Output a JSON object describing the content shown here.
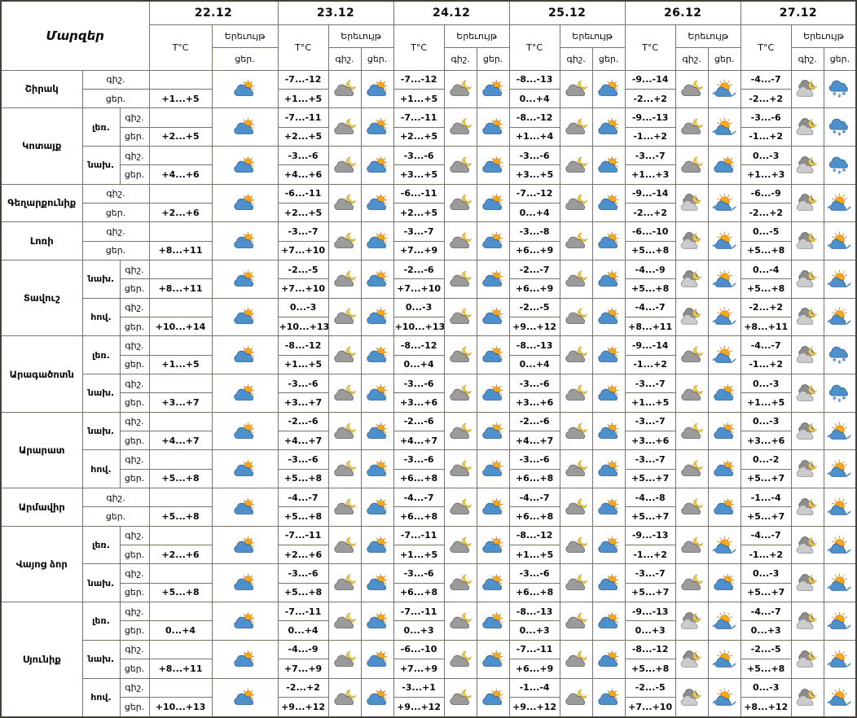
{
  "header": {
    "regions_label": "Մարզեր",
    "dates": [
      "22.12",
      "23.12",
      "24.12",
      "25.12",
      "26.12",
      "27.12"
    ],
    "temp_label": "T°C",
    "phenomenon_label": "Երեւույթ",
    "night_label": "գիշ.",
    "day_label": "ցեր."
  },
  "day_fields": [
    "night_temp",
    "day_temp",
    "night_icon",
    "day_icon"
  ],
  "icons": {
    "sun-cloud": "sun behind blue cloud — partly cloudy day",
    "moon-cloud": "moon behind gray cloud — cloudy night",
    "moon-clouds": "moon with two gray clouds — partly cloudy night",
    "sun-fog": "sun over blue fog bank — hazy sunshine",
    "snow-cloud": "blue cloud with snowflakes — snow"
  },
  "colors": {
    "grid_border": "#7b7565",
    "outer_border": "#44413a",
    "text": "#0a0a0a",
    "sun": "#f5a81c",
    "moon": "#efc84f",
    "cloud_blue": "#4e90cc",
    "cloud_gray": "#9b9b9b",
    "background": "#ffffff"
  },
  "regions": [
    {
      "name": "Շիրակ",
      "zones": [
        {
          "zone": null,
          "days": [
            [
              "",
              "+1...+5",
              null,
              "sun-cloud"
            ],
            [
              "-7...-12",
              "+1...+5",
              "moon-cloud",
              "sun-cloud"
            ],
            [
              "-7...-12",
              "+1...+5",
              "moon-cloud",
              "sun-cloud"
            ],
            [
              "-8...-13",
              "0...+4",
              "moon-cloud",
              "sun-cloud"
            ],
            [
              "-9...-14",
              "-2...+2",
              "moon-cloud",
              "sun-fog"
            ],
            [
              "-4...-7",
              "-2...+2",
              "moon-clouds",
              "snow-cloud"
            ]
          ]
        }
      ]
    },
    {
      "name": "Կոտայք",
      "zones": [
        {
          "zone": "լեռ.",
          "days": [
            [
              "",
              "+2...+5",
              null,
              "sun-cloud"
            ],
            [
              "-7...-11",
              "+2...+5",
              "moon-cloud",
              "sun-cloud"
            ],
            [
              "-7...-11",
              "+2...+5",
              "moon-cloud",
              "sun-cloud"
            ],
            [
              "-8...-12",
              "+1...+4",
              "moon-cloud",
              "sun-cloud"
            ],
            [
              "-9...-13",
              "-1...+2",
              "moon-cloud",
              "sun-fog"
            ],
            [
              "-3...-6",
              "-1...+2",
              "moon-clouds",
              "snow-cloud"
            ]
          ]
        },
        {
          "zone": "նախ.",
          "days": [
            [
              "",
              "+4...+6",
              null,
              "sun-cloud"
            ],
            [
              "-3...-6",
              "+4...+6",
              "moon-cloud",
              "sun-cloud"
            ],
            [
              "-3...-6",
              "+3...+5",
              "moon-cloud",
              "sun-cloud"
            ],
            [
              "-3...-6",
              "+3...+5",
              "moon-cloud",
              "sun-cloud"
            ],
            [
              "-3...-7",
              "+1...+3",
              "moon-cloud",
              "sun-cloud"
            ],
            [
              "0...-3",
              "+1...+3",
              "moon-clouds",
              "snow-cloud"
            ]
          ]
        }
      ]
    },
    {
      "name": "Գեղարքունիք",
      "zones": [
        {
          "zone": null,
          "days": [
            [
              "",
              "+2...+6",
              null,
              "sun-cloud"
            ],
            [
              "-6...-11",
              "+2...+5",
              "moon-cloud",
              "sun-cloud"
            ],
            [
              "-6...-11",
              "+2...+5",
              "moon-cloud",
              "sun-cloud"
            ],
            [
              "-7...-12",
              "0...+4",
              "moon-cloud",
              "sun-cloud"
            ],
            [
              "-9...-14",
              "-2...+2",
              "moon-clouds",
              "sun-fog"
            ],
            [
              "-6...-9",
              "-2...+2",
              "moon-clouds",
              "sun-fog"
            ]
          ]
        }
      ]
    },
    {
      "name": "Լոռի",
      "zones": [
        {
          "zone": null,
          "days": [
            [
              "",
              "+8...+11",
              null,
              "sun-cloud"
            ],
            [
              "-3...-7",
              "+7...+10",
              "moon-cloud",
              "sun-cloud"
            ],
            [
              "-3...-7",
              "+7...+9",
              "moon-cloud",
              "sun-cloud"
            ],
            [
              "-3...-8",
              "+6...+9",
              "moon-cloud",
              "sun-cloud"
            ],
            [
              "-6...-10",
              "+5...+8",
              "moon-clouds",
              "sun-fog"
            ],
            [
              "0...-5",
              "+5...+8",
              "moon-clouds",
              "sun-fog"
            ]
          ]
        }
      ]
    },
    {
      "name": "Տավուշ",
      "zones": [
        {
          "zone": "նախ.",
          "days": [
            [
              "",
              "+8...+11",
              null,
              "sun-cloud"
            ],
            [
              "-2...-5",
              "+7...+10",
              "moon-cloud",
              "sun-cloud"
            ],
            [
              "-2...-6",
              "+7...+10",
              "moon-cloud",
              "sun-cloud"
            ],
            [
              "-2...-7",
              "+6...+9",
              "moon-cloud",
              "sun-cloud"
            ],
            [
              "-4...-9",
              "+5...+8",
              "moon-clouds",
              "sun-fog"
            ],
            [
              "0...-4",
              "+5...+8",
              "moon-clouds",
              "sun-fog"
            ]
          ]
        },
        {
          "zone": "հով.",
          "days": [
            [
              "",
              "+10...+14",
              null,
              "sun-cloud"
            ],
            [
              "0...-3",
              "+10...+13",
              "moon-cloud",
              "sun-cloud"
            ],
            [
              "0...-3",
              "+10...+13",
              "moon-cloud",
              "sun-cloud"
            ],
            [
              "-2...-5",
              "+9...+12",
              "moon-cloud",
              "sun-cloud"
            ],
            [
              "-4...-7",
              "+8...+11",
              "moon-clouds",
              "sun-fog"
            ],
            [
              "-2...+2",
              "+8...+11",
              "moon-clouds",
              "sun-fog"
            ]
          ]
        }
      ]
    },
    {
      "name": "Արագածոտն",
      "zones": [
        {
          "zone": "լեռ.",
          "days": [
            [
              "",
              "+1...+5",
              null,
              "sun-cloud"
            ],
            [
              "-8...-12",
              "+1...+5",
              "moon-cloud",
              "sun-cloud"
            ],
            [
              "-8...-12",
              "0...+4",
              "moon-cloud",
              "sun-cloud"
            ],
            [
              "-8...-13",
              "0...+4",
              "moon-cloud",
              "sun-cloud"
            ],
            [
              "-9...-14",
              "-1...+2",
              "moon-cloud",
              "sun-fog"
            ],
            [
              "-4...-7",
              "-1...+2",
              "moon-clouds",
              "snow-cloud"
            ]
          ]
        },
        {
          "zone": "նախ.",
          "days": [
            [
              "",
              "+3...+7",
              null,
              "sun-cloud"
            ],
            [
              "-3...-6",
              "+3...+7",
              "moon-cloud",
              "sun-cloud"
            ],
            [
              "-3...-6",
              "+3...+6",
              "moon-cloud",
              "sun-cloud"
            ],
            [
              "-3...-6",
              "+3...+6",
              "moon-cloud",
              "sun-cloud"
            ],
            [
              "-3...-7",
              "+1...+5",
              "moon-cloud",
              "sun-cloud"
            ],
            [
              "0...-3",
              "+1...+5",
              "moon-clouds",
              "snow-cloud"
            ]
          ]
        }
      ]
    },
    {
      "name": "Արարատ",
      "zones": [
        {
          "zone": "նախ.",
          "days": [
            [
              "",
              "+4...+7",
              null,
              "sun-cloud"
            ],
            [
              "-2...-6",
              "+4...+7",
              "moon-cloud",
              "sun-cloud"
            ],
            [
              "-2...-6",
              "+4...+7",
              "moon-cloud",
              "sun-cloud"
            ],
            [
              "-2...-6",
              "+4...+7",
              "moon-cloud",
              "sun-cloud"
            ],
            [
              "-3...-7",
              "+3...+6",
              "moon-cloud",
              "sun-cloud"
            ],
            [
              "0...-3",
              "+3...+6",
              "moon-clouds",
              "sun-fog"
            ]
          ]
        },
        {
          "zone": "հով.",
          "days": [
            [
              "",
              "+5...+8",
              null,
              "sun-cloud"
            ],
            [
              "-3...-6",
              "+5...+8",
              "moon-cloud",
              "sun-cloud"
            ],
            [
              "-3...-6",
              "+6...+8",
              "moon-cloud",
              "sun-cloud"
            ],
            [
              "-3...-6",
              "+6...+8",
              "moon-cloud",
              "sun-cloud"
            ],
            [
              "-3...-7",
              "+5...+7",
              "moon-cloud",
              "sun-cloud"
            ],
            [
              "0...-2",
              "+5...+7",
              "moon-clouds",
              "sun-fog"
            ]
          ]
        }
      ]
    },
    {
      "name": "Արմավիր",
      "zones": [
        {
          "zone": null,
          "days": [
            [
              "",
              "+5...+8",
              null,
              "sun-cloud"
            ],
            [
              "-4...-7",
              "+5...+8",
              "moon-cloud",
              "sun-cloud"
            ],
            [
              "-4...-7",
              "+6...+8",
              "moon-cloud",
              "sun-cloud"
            ],
            [
              "-4...-7",
              "+6...+8",
              "moon-cloud",
              "sun-cloud"
            ],
            [
              "-4...-8",
              "+5...+7",
              "moon-cloud",
              "sun-cloud"
            ],
            [
              "-1...-4",
              "+5...+7",
              "moon-clouds",
              "sun-fog"
            ]
          ]
        }
      ]
    },
    {
      "name": "Վայոց ձոր",
      "zones": [
        {
          "zone": "լեռ.",
          "days": [
            [
              "",
              "+2...+6",
              null,
              "sun-cloud"
            ],
            [
              "-7...-11",
              "+2...+6",
              "moon-cloud",
              "sun-cloud"
            ],
            [
              "-7...-11",
              "+1...+5",
              "moon-cloud",
              "sun-cloud"
            ],
            [
              "-8...-12",
              "+1...+5",
              "moon-cloud",
              "sun-cloud"
            ],
            [
              "-9...-13",
              "-1...+2",
              "moon-cloud",
              "sun-fog"
            ],
            [
              "-4...-7",
              "-1...+2",
              "moon-clouds",
              "sun-fog"
            ]
          ]
        },
        {
          "zone": "նախ.",
          "days": [
            [
              "",
              "+5...+8",
              null,
              "sun-cloud"
            ],
            [
              "-3...-6",
              "+5...+8",
              "moon-cloud",
              "sun-cloud"
            ],
            [
              "-3...-6",
              "+6...+8",
              "moon-cloud",
              "sun-cloud"
            ],
            [
              "-3...-6",
              "+6...+8",
              "moon-cloud",
              "sun-cloud"
            ],
            [
              "-3...-7",
              "+5...+7",
              "moon-cloud",
              "sun-cloud"
            ],
            [
              "0...-3",
              "+5...+7",
              "moon-clouds",
              "sun-fog"
            ]
          ]
        }
      ]
    },
    {
      "name": "Սյունիք",
      "zones": [
        {
          "zone": "լեռ.",
          "days": [
            [
              "",
              "0...+4",
              null,
              "sun-cloud"
            ],
            [
              "-7...-11",
              "0...+4",
              "moon-cloud",
              "sun-cloud"
            ],
            [
              "-7...-11",
              "0...+3",
              "moon-cloud",
              "sun-cloud"
            ],
            [
              "-8...-13",
              "0...+3",
              "moon-cloud",
              "sun-cloud"
            ],
            [
              "-9...-13",
              "0...+3",
              "moon-clouds",
              "sun-fog"
            ],
            [
              "-4...-7",
              "0...+3",
              "moon-clouds",
              "sun-fog"
            ]
          ]
        },
        {
          "zone": "նախ.",
          "days": [
            [
              "",
              "+8...+11",
              null,
              "sun-cloud"
            ],
            [
              "-4...-9",
              "+7...+9",
              "moon-cloud",
              "sun-cloud"
            ],
            [
              "-6...-10",
              "+7...+9",
              "moon-cloud",
              "sun-cloud"
            ],
            [
              "-7...-11",
              "+6...+9",
              "moon-cloud",
              "sun-cloud"
            ],
            [
              "-8...-12",
              "+5...+8",
              "moon-clouds",
              "sun-fog"
            ],
            [
              "-2...-5",
              "+5...+8",
              "moon-clouds",
              "sun-fog"
            ]
          ]
        },
        {
          "zone": "հով.",
          "days": [
            [
              "",
              "+10...+13",
              null,
              "sun-cloud"
            ],
            [
              "-2...+2",
              "+9...+12",
              "moon-cloud",
              "sun-cloud"
            ],
            [
              "-3...+1",
              "+9...+12",
              "moon-cloud",
              "sun-cloud"
            ],
            [
              "-1...-4",
              "+9...+12",
              "moon-cloud",
              "sun-cloud"
            ],
            [
              "-2...-5",
              "+7...+10",
              "moon-clouds",
              "sun-fog"
            ],
            [
              "0...-3",
              "+8...+12",
              "moon-clouds",
              "sun-fog"
            ]
          ]
        }
      ]
    }
  ]
}
